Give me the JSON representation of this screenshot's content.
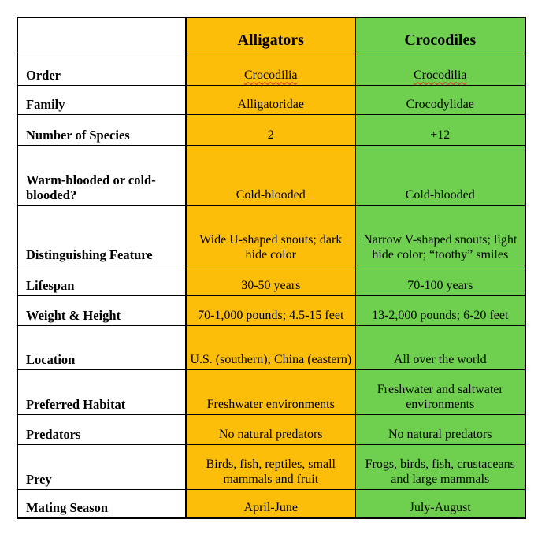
{
  "colors": {
    "alligator_column": "#FCBE08",
    "crocodile_column": "#6ED04E",
    "border": "#000000",
    "misspelling_squiggle": "#E02B20",
    "text": "#000000"
  },
  "table": {
    "header": {
      "blank": "",
      "alligators": "Alligators",
      "crocodiles": "Crocodiles"
    },
    "rows": [
      {
        "label": "Order",
        "alligators": "Crocodilia",
        "crocodiles": "Crocodilia"
      },
      {
        "label": "Family",
        "alligators": "Alligatoridae",
        "crocodiles": "Crocodylidae"
      },
      {
        "label": "Number of Species",
        "alligators": "2",
        "crocodiles": "+12"
      },
      {
        "label": "Warm-blooded or cold-blooded?",
        "alligators": "Cold-blooded",
        "crocodiles": "Cold-blooded"
      },
      {
        "label": "Distinguishing Feature",
        "alligators": "Wide U-shaped snouts; dark hide color",
        "crocodiles": "Narrow V-shaped snouts; light hide color; “toothy” smiles"
      },
      {
        "label": "Lifespan",
        "alligators": "30-50 years",
        "crocodiles": "70-100 years"
      },
      {
        "label": "Weight & Height",
        "alligators": "70-1,000 pounds; 4.5-15 feet",
        "crocodiles": "13-2,000 pounds; 6-20 feet"
      },
      {
        "label": "Location",
        "alligators": "U.S. (southern); China (eastern)",
        "crocodiles": "All over the world"
      },
      {
        "label": "Preferred Habitat",
        "alligators": "Freshwater environments",
        "crocodiles": "Freshwater and saltwater environments"
      },
      {
        "label": "Predators",
        "alligators": "No natural predators",
        "crocodiles": "No natural predators"
      },
      {
        "label": "Prey",
        "alligators": "Birds, fish, reptiles, small mammals and fruit",
        "crocodiles": "Frogs, birds, fish, crustaceans and large mammals"
      },
      {
        "label": "Mating Season",
        "alligators": "April-June",
        "crocodiles": "July-August"
      }
    ]
  }
}
